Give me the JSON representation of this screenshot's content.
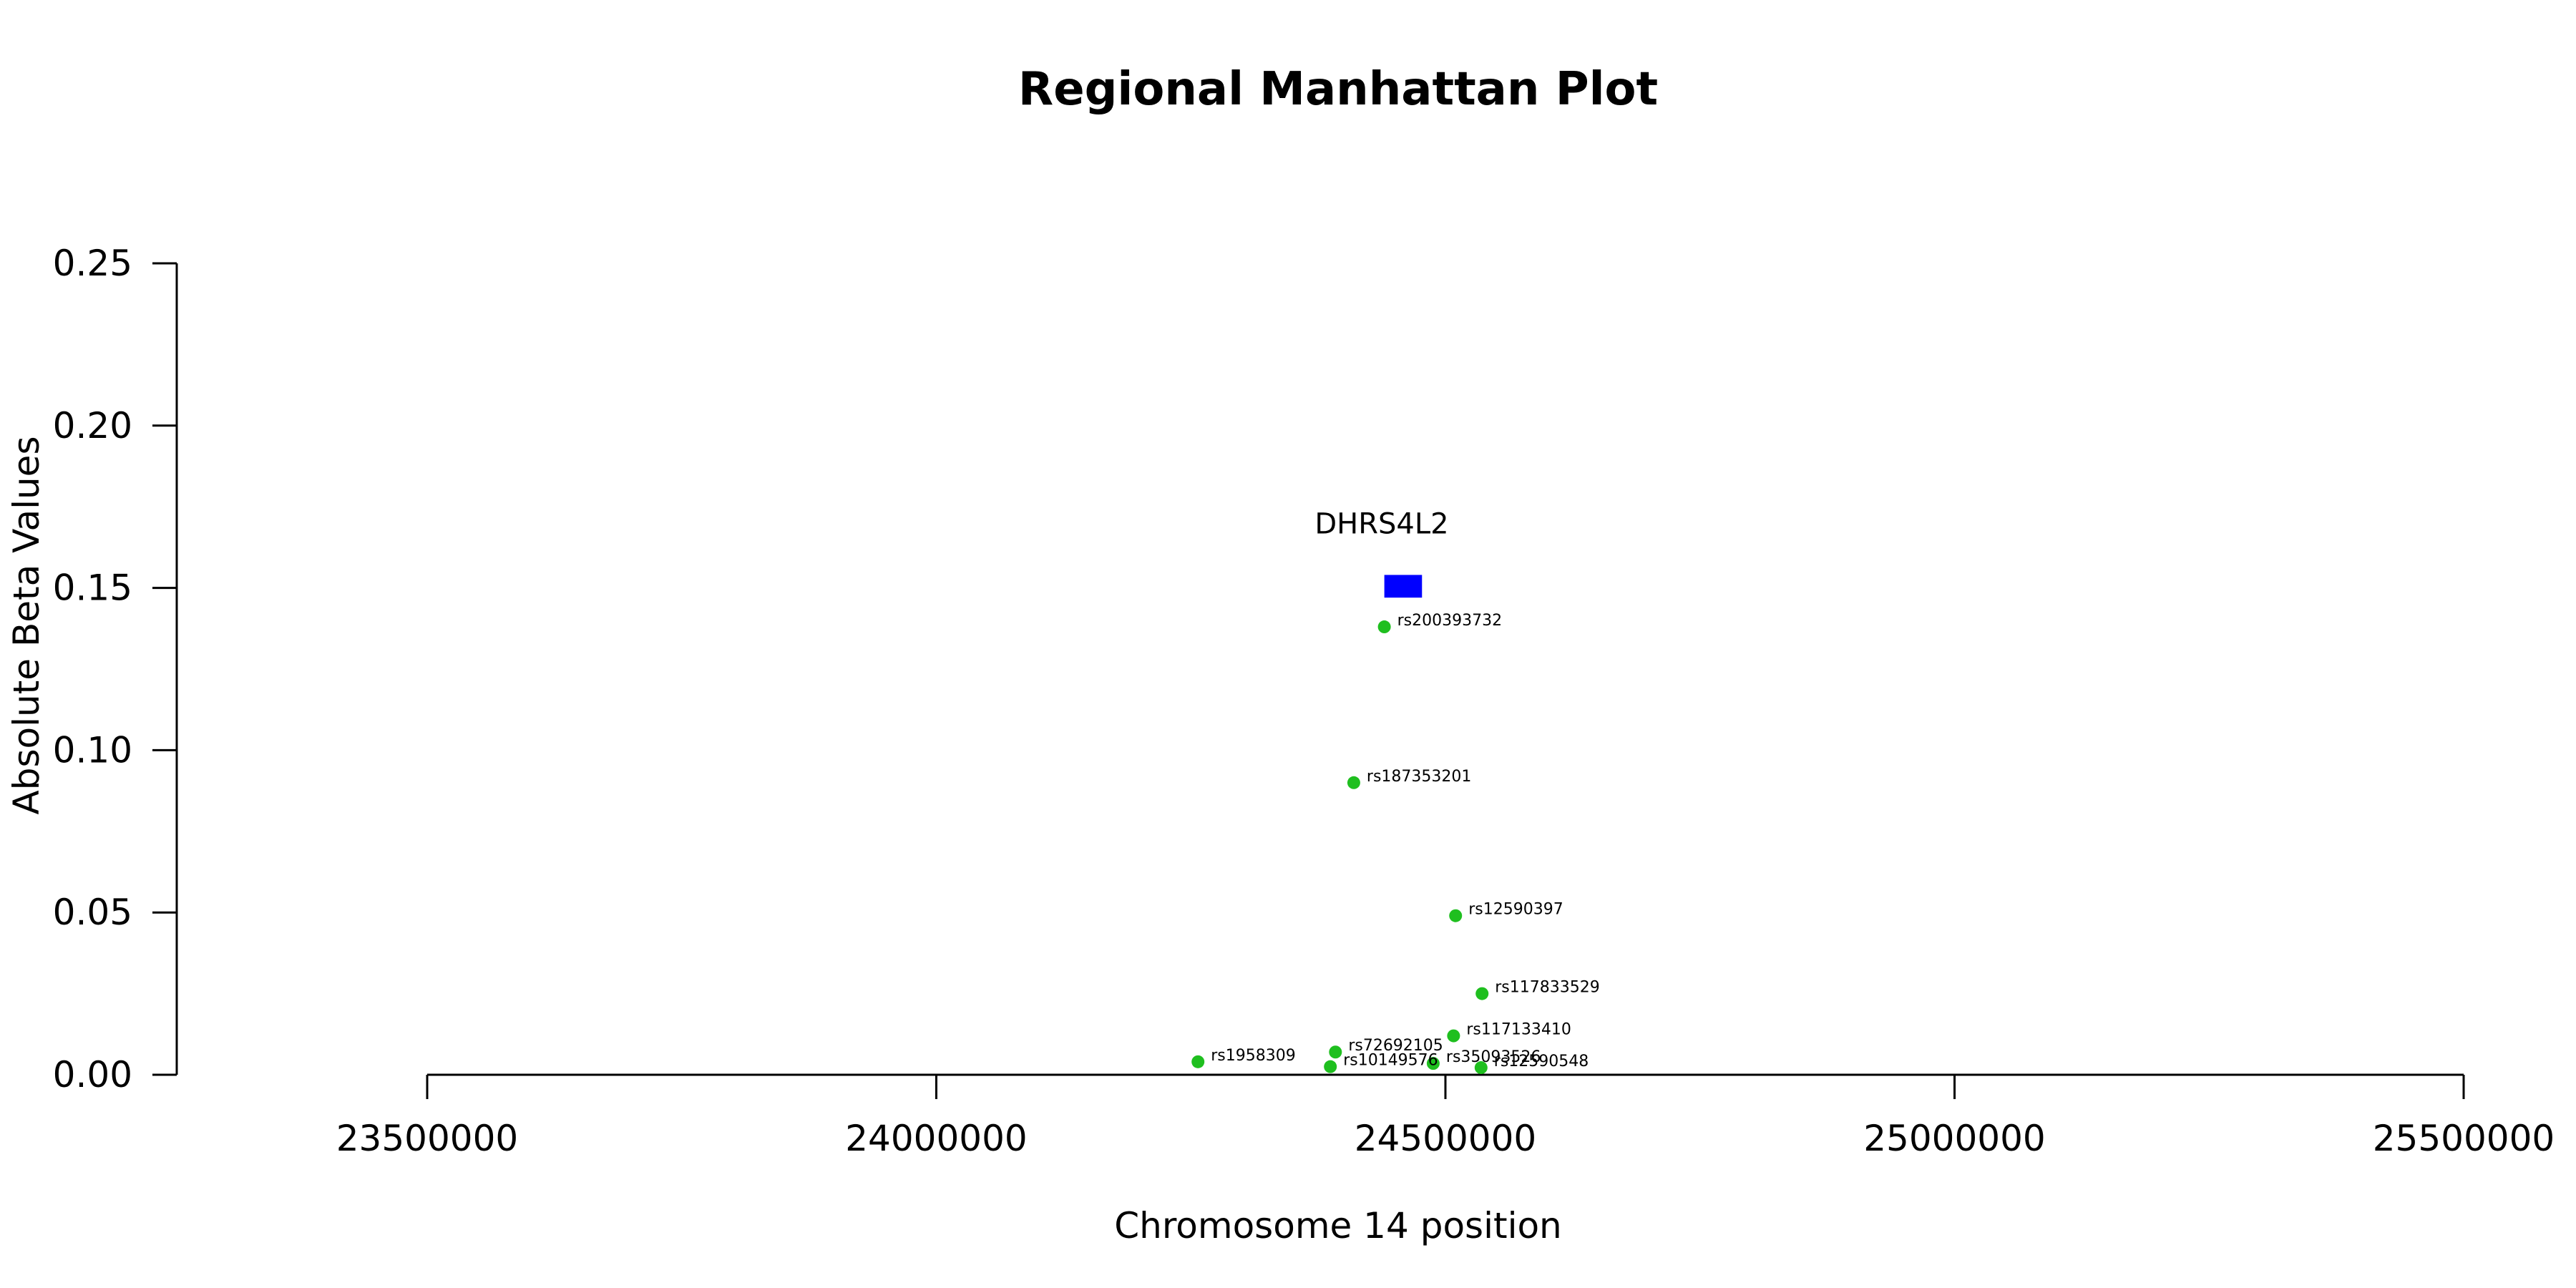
{
  "chart_data": {
    "type": "scatter",
    "title": "Regional Manhattan Plot",
    "xlabel": "Chromosome 14 position",
    "ylabel": "Absolute Beta Values",
    "xlim": [
      23500000,
      25500000
    ],
    "ylim": [
      0,
      0.25
    ],
    "x_ticks": [
      23500000,
      24000000,
      24500000,
      25000000,
      25500000
    ],
    "x_tick_labels": [
      "23500000",
      "24000000",
      "24500000",
      "25000000",
      "25500000"
    ],
    "y_ticks": [
      0,
      0.05,
      0.1,
      0.15,
      0.2,
      0.25
    ],
    "y_tick_labels": [
      "0.00",
      "0.05",
      "0.10",
      "0.15",
      "0.20",
      "0.25"
    ],
    "grid": false,
    "point_color": "#1fbf1f",
    "series": [
      {
        "points": [
          {
            "label": "rs200393732",
            "x": 24440000,
            "y": 0.138
          },
          {
            "label": "rs187353201",
            "x": 24410000,
            "y": 0.09
          },
          {
            "label": "rs12590397",
            "x": 24510000,
            "y": 0.049
          },
          {
            "label": "rs117833529",
            "x": 24536000,
            "y": 0.025
          },
          {
            "label": "rs117133410",
            "x": 24508000,
            "y": 0.012
          },
          {
            "label": "rs72692105",
            "x": 24392000,
            "y": 0.007
          },
          {
            "label": "rs1958309",
            "x": 24257000,
            "y": 0.004
          },
          {
            "label": "rs35093526",
            "x": 24488000,
            "y": 0.0035
          },
          {
            "label": "rs10149576",
            "x": 24387000,
            "y": 0.0025
          },
          {
            "label": "rs12590548",
            "x": 24535000,
            "y": 0.0022
          }
        ]
      }
    ],
    "gene": {
      "name": "DHRS4L2",
      "start": 24440000,
      "end": 24477000,
      "y_low": 0.147,
      "y_high": 0.154,
      "color": "#0000ff"
    }
  }
}
